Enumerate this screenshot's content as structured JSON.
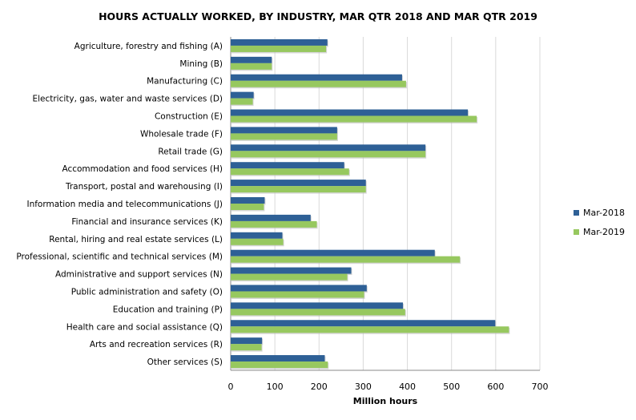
{
  "chart_data": {
    "type": "bar",
    "orientation": "horizontal",
    "title": "HOURS ACTUALLY WORKED, BY INDUSTRY, MAR QTR 2018 AND MAR QTR 2019",
    "xlabel": "Million hours",
    "ylabel": "",
    "xlim": [
      0,
      700
    ],
    "xticks": [
      0,
      100,
      200,
      300,
      400,
      500,
      600,
      700
    ],
    "grid": true,
    "legend_position": "right",
    "categories": [
      "Agriculture, forestry and fishing (A)",
      "Mining (B)",
      "Manufacturing (C)",
      "Electricity, gas, water and waste services (D)",
      "Construction (E)",
      "Wholesale trade (F)",
      "Retail trade (G)",
      "Accommodation and food services (H)",
      "Transport, postal and warehousing (I)",
      "Information media and telecommunications (J)",
      "Financial and insurance services (K)",
      "Rental, hiring and real estate services (L)",
      "Professional, scientific and technical services (M)",
      "Administrative and support services (N)",
      "Public administration and safety (O)",
      "Education and training (P)",
      "Health care and social assistance (Q)",
      "Arts and recreation services (R)",
      "Other services (S)"
    ],
    "series": [
      {
        "name": "Mar-2018",
        "color": "#2e6096",
        "values": [
          219,
          93,
          388,
          52,
          537,
          241,
          441,
          257,
          306,
          77,
          181,
          117,
          462,
          273,
          308,
          390,
          599,
          71,
          213
        ]
      },
      {
        "name": "Mar-2019",
        "color": "#97c85f",
        "values": [
          216,
          93,
          397,
          50,
          557,
          241,
          441,
          268,
          306,
          75,
          195,
          119,
          519,
          264,
          302,
          395,
          630,
          70,
          220
        ]
      }
    ]
  }
}
